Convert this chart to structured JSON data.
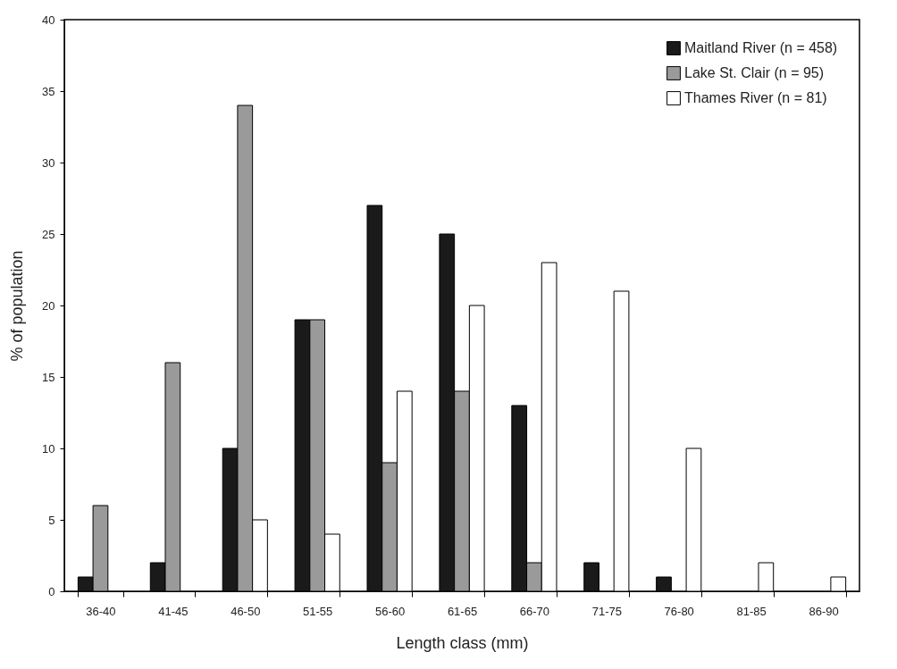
{
  "chart_data": {
    "type": "bar",
    "xlabel": "Length class (mm)",
    "ylabel": "% of population",
    "categories": [
      "36-40",
      "41-45",
      "46-50",
      "51-55",
      "56-60",
      "61-65",
      "66-70",
      "71-75",
      "76-80",
      "81-85",
      "86-90"
    ],
    "series": [
      {
        "name": "Maitland River (n = 458)",
        "color": "#1a1a1a",
        "values": [
          1,
          2,
          10,
          19,
          27,
          25,
          13,
          2,
          1,
          0,
          0
        ]
      },
      {
        "name": "Lake St. Clair (n = 95)",
        "color": "#9a9a9a",
        "values": [
          6,
          16,
          34,
          19,
          9,
          14,
          2,
          0,
          0,
          0,
          0
        ]
      },
      {
        "name": "Thames River (n = 81)",
        "color": "#ffffff",
        "values": [
          0,
          0,
          5,
          4,
          14,
          20,
          23,
          21,
          10,
          2,
          1
        ]
      }
    ],
    "ylim": [
      0,
      40
    ],
    "yticks": [
      0,
      5,
      10,
      15,
      20,
      25,
      30,
      35,
      40
    ],
    "grid": false,
    "legend": "top right"
  }
}
